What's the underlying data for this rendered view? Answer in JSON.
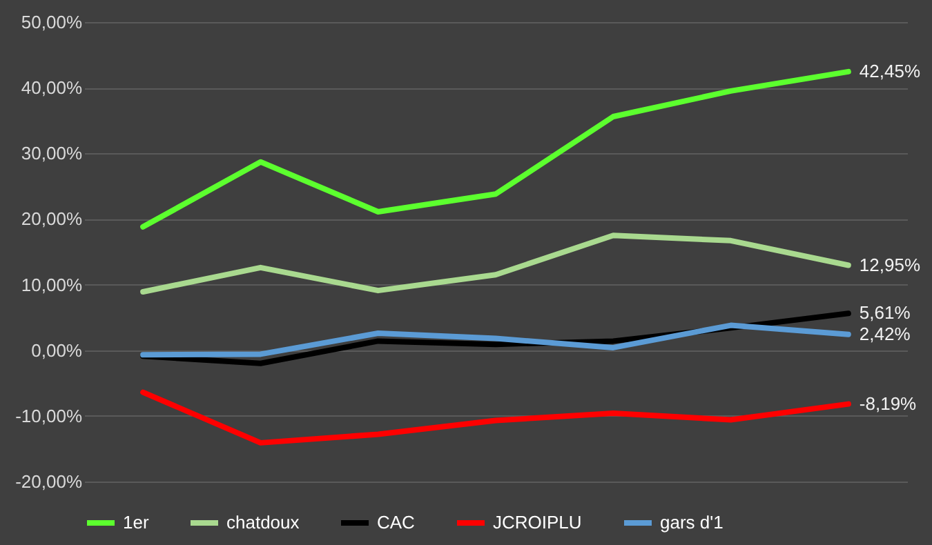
{
  "chart_data": {
    "type": "line",
    "categories": [
      null,
      null,
      null,
      null,
      null,
      null,
      null
    ],
    "series": [
      {
        "name": "1er",
        "color": "#5cff2e",
        "values": [
          18.8,
          28.7,
          21.1,
          23.8,
          35.6,
          39.5,
          42.45
        ],
        "value_labels": [
          null,
          null,
          null,
          null,
          null,
          null,
          "42,45%"
        ]
      },
      {
        "name": "chatdoux",
        "color": "#a9d98f",
        "values": [
          8.9,
          12.6,
          9.1,
          11.5,
          17.5,
          16.7,
          12.95
        ],
        "value_labels": [
          null,
          null,
          null,
          null,
          null,
          null,
          "12,95%"
        ]
      },
      {
        "name": "CAC",
        "color": "#000000",
        "values": [
          -0.9,
          -2.0,
          1.4,
          0.9,
          1.4,
          3.4,
          5.61
        ],
        "value_labels": [
          null,
          null,
          null,
          null,
          null,
          null,
          "5,61%"
        ]
      },
      {
        "name": "JCROIPLU",
        "color": "#ff0000",
        "values": [
          -6.4,
          -14.1,
          -12.8,
          -10.7,
          -9.6,
          -10.6,
          -8.19
        ],
        "value_labels": [
          null,
          null,
          null,
          null,
          null,
          null,
          "-8,19%"
        ]
      },
      {
        "name": "gars d'1",
        "color": "#5b9bd5",
        "values": [
          -0.7,
          -0.6,
          2.6,
          1.8,
          0.4,
          3.8,
          2.42
        ],
        "value_labels": [
          null,
          null,
          null,
          null,
          null,
          null,
          "2,42%"
        ]
      }
    ],
    "ylim": [
      -20,
      50
    ],
    "yticks": [
      {
        "value": -20,
        "label": "-20,00%"
      },
      {
        "value": -10,
        "label": "-10,00%"
      },
      {
        "value": 0,
        "label": "0,00%"
      },
      {
        "value": 10,
        "label": "10,00%"
      },
      {
        "value": 20,
        "label": "20,00%"
      },
      {
        "value": 30,
        "label": "30,00%"
      },
      {
        "value": 40,
        "label": "40,00%"
      },
      {
        "value": 50,
        "label": "50,00%"
      }
    ],
    "grid": "y",
    "legend": "bottom",
    "tick_labels": "y",
    "marker": "none",
    "line_style": "solid"
  }
}
